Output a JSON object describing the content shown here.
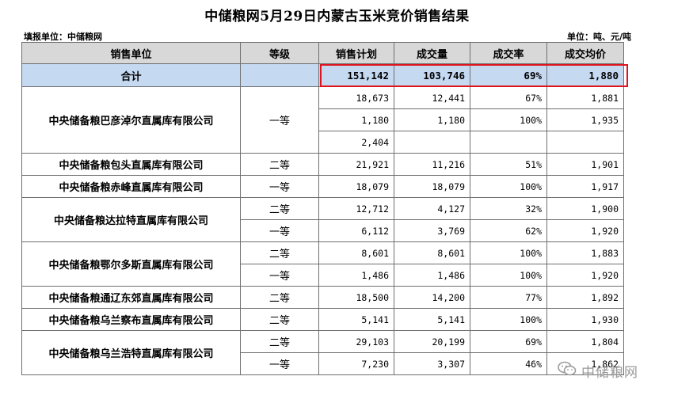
{
  "title": "中储粮网5月29日内蒙古玉米竞价销售结果",
  "meta": {
    "filler": "填报单位：中储粮网",
    "unit": "单位：吨、元/吨"
  },
  "table": {
    "headers": [
      "销售单位",
      "等级",
      "销售计划",
      "成交量",
      "成交率",
      "成交均价"
    ],
    "total": {
      "label": "合计",
      "grade": "",
      "plan": "151,142",
      "volume": "103,746",
      "rate": "69%",
      "price": "1,880"
    },
    "groups": [
      {
        "company": "中央储备粮巴彦淖尔直属库有限公司",
        "rows": [
          {
            "grade": "",
            "plan": "18,673",
            "volume": "12,441",
            "rate": "67%",
            "price": "1,881"
          },
          {
            "grade": "一等",
            "plan": "1,180",
            "volume": "1,180",
            "rate": "100%",
            "price": "1,935"
          },
          {
            "grade": "",
            "plan": "2,404",
            "volume": "",
            "rate": "",
            "price": ""
          }
        ]
      },
      {
        "company": "中央储备粮包头直属库有限公司",
        "rows": [
          {
            "grade": "二等",
            "plan": "21,921",
            "volume": "11,216",
            "rate": "51%",
            "price": "1,901"
          }
        ]
      },
      {
        "company": "中央储备粮赤峰直属库有限公司",
        "rows": [
          {
            "grade": "一等",
            "plan": "18,079",
            "volume": "18,079",
            "rate": "100%",
            "price": "1,917"
          }
        ]
      },
      {
        "company": "中央储备粮达拉特直属库有限公司",
        "rows": [
          {
            "grade": "二等",
            "plan": "12,712",
            "volume": "4,127",
            "rate": "32%",
            "price": "1,900"
          },
          {
            "grade": "一等",
            "plan": "6,112",
            "volume": "3,769",
            "rate": "62%",
            "price": "1,920"
          }
        ]
      },
      {
        "company": "中央储备粮鄂尔多斯直属库有限公司",
        "rows": [
          {
            "grade": "二等",
            "plan": "8,601",
            "volume": "8,601",
            "rate": "100%",
            "price": "1,883"
          },
          {
            "grade": "一等",
            "plan": "1,486",
            "volume": "1,486",
            "rate": "100%",
            "price": "1,920"
          }
        ]
      },
      {
        "company": "中央储备粮通辽东郊直属库有限公司",
        "rows": [
          {
            "grade": "二等",
            "plan": "18,500",
            "volume": "14,200",
            "rate": "77%",
            "price": "1,892"
          }
        ]
      },
      {
        "company": "中央储备粮乌兰察布直属库有限公司",
        "rows": [
          {
            "grade": "二等",
            "plan": "5,141",
            "volume": "5,141",
            "rate": "100%",
            "price": "1,930"
          }
        ]
      },
      {
        "company": "中央储备粮乌兰浩特直属库有限公司",
        "rows": [
          {
            "grade": "二等",
            "plan": "29,103",
            "volume": "20,199",
            "rate": "69%",
            "price": "1,804"
          },
          {
            "grade": "一等",
            "plan": "7,230",
            "volume": "3,307",
            "rate": "46%",
            "price": "1,862"
          }
        ]
      }
    ]
  },
  "watermark": {
    "icon": "wechat-icon",
    "text": "中储粮网"
  }
}
